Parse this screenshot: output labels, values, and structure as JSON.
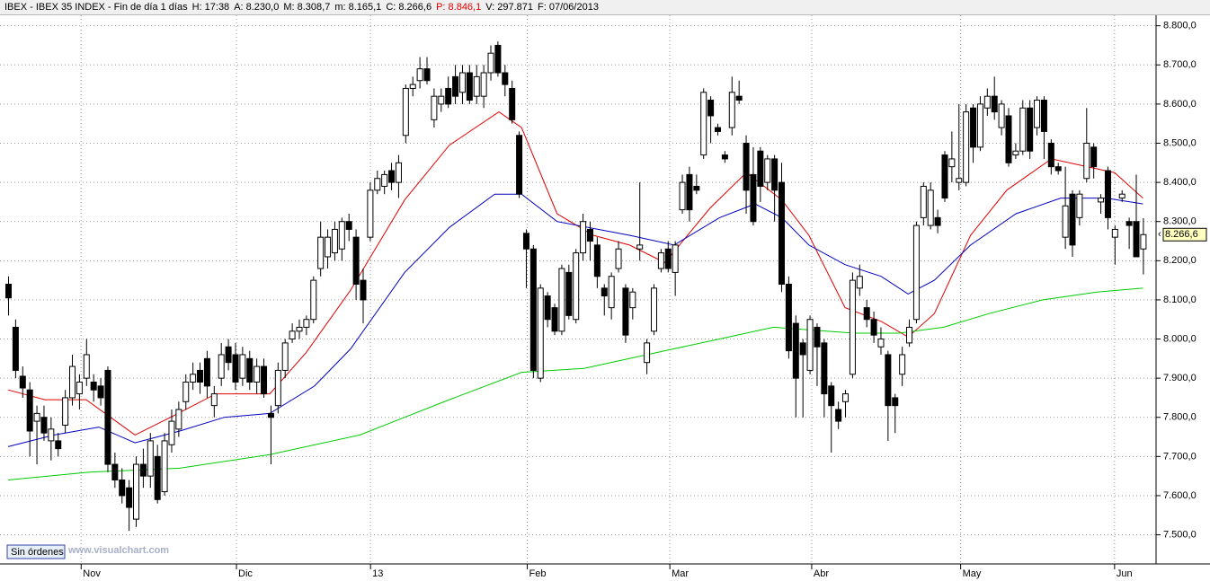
{
  "chart_data": {
    "type": "candlestick",
    "header": [
      {
        "text": "IBEX - IBEX 35 INDEX - Fin de día 1 días"
      },
      {
        "text": "H: 17:38"
      },
      {
        "text": "A: 8.230,0"
      },
      {
        "text": "M: 8.308,7"
      },
      {
        "text": "m: 8.165,1"
      },
      {
        "text": "C: 8.266,6"
      },
      {
        "text": "P: 8.846,1",
        "color": "#e00000"
      },
      {
        "text": "V: 297.871"
      },
      {
        "text": "F: 07/06/2013"
      }
    ],
    "watermark": "www.visualchart.com",
    "button": "Sin órdenes",
    "up_color": "#ffffff",
    "down_color": "#000000",
    "grid": true,
    "ohlc": [
      [
        8140,
        8160,
        8060,
        8105
      ],
      [
        8030,
        8050,
        7900,
        7920
      ],
      [
        7905,
        7930,
        7850,
        7875
      ],
      [
        7870,
        7890,
        7700,
        7765
      ],
      [
        7790,
        7830,
        7680,
        7810
      ],
      [
        7800,
        7830,
        7740,
        7760
      ],
      [
        7740,
        7800,
        7690,
        7770
      ],
      [
        7740,
        7760,
        7700,
        7720
      ],
      [
        7780,
        7870,
        7760,
        7850
      ],
      [
        7850,
        7960,
        7830,
        7930
      ],
      [
        7860,
        7910,
        7820,
        7890
      ],
      [
        7900,
        8000,
        7880,
        7960
      ],
      [
        7890,
        7910,
        7840,
        7870
      ],
      [
        7880,
        7900,
        7830,
        7850
      ],
      [
        7920,
        7930,
        7660,
        7680
      ],
      [
        7680,
        7710,
        7620,
        7640
      ],
      [
        7640,
        7670,
        7580,
        7600
      ],
      [
        7620,
        7640,
        7510,
        7570
      ],
      [
        7540,
        7700,
        7520,
        7680
      ],
      [
        7680,
        7720,
        7620,
        7650
      ],
      [
        7650,
        7760,
        7620,
        7740
      ],
      [
        7700,
        7730,
        7580,
        7590
      ],
      [
        7610,
        7760,
        7600,
        7740
      ],
      [
        7730,
        7820,
        7710,
        7790
      ],
      [
        7770,
        7840,
        7750,
        7820
      ],
      [
        7840,
        7910,
        7820,
        7890
      ],
      [
        7890,
        7940,
        7870,
        7910
      ],
      [
        7920,
        7940,
        7860,
        7890
      ],
      [
        7950,
        7970,
        7850,
        7880
      ],
      [
        7830,
        7880,
        7800,
        7860
      ],
      [
        7900,
        7990,
        7880,
        7960
      ],
      [
        7980,
        8000,
        7920,
        7940
      ],
      [
        7960,
        7990,
        7870,
        7890
      ],
      [
        7900,
        7980,
        7880,
        7960
      ],
      [
        7950,
        7970,
        7870,
        7890
      ],
      [
        7890,
        7950,
        7860,
        7930
      ],
      [
        7930,
        7950,
        7850,
        7860
      ],
      [
        7810,
        7830,
        7680,
        7800
      ],
      [
        7830,
        7940,
        7810,
        7920
      ],
      [
        7920,
        8000,
        7900,
        7990
      ],
      [
        8000,
        8040,
        7990,
        8020
      ],
      [
        8020,
        8050,
        8000,
        8030
      ],
      [
        8030,
        8060,
        8010,
        8050
      ],
      [
        8050,
        8160,
        8040,
        8150
      ],
      [
        8180,
        8300,
        8160,
        8260
      ],
      [
        8210,
        8280,
        8180,
        8260
      ],
      [
        8220,
        8300,
        8200,
        8280
      ],
      [
        8230,
        8310,
        8200,
        8300
      ],
      [
        8300,
        8320,
        8250,
        8280
      ],
      [
        8260,
        8280,
        8100,
        8140
      ],
      [
        8150,
        8180,
        8040,
        8100
      ],
      [
        8260,
        8400,
        8250,
        8380
      ],
      [
        8380,
        8430,
        8370,
        8410
      ],
      [
        8390,
        8430,
        8370,
        8420
      ],
      [
        8430,
        8450,
        8380,
        8400
      ],
      [
        8400,
        8470,
        8360,
        8450
      ],
      [
        8520,
        8650,
        8500,
        8640
      ],
      [
        8640,
        8670,
        8620,
        8650
      ],
      [
        8660,
        8720,
        8640,
        8690
      ],
      [
        8690,
        8720,
        8650,
        8660
      ],
      [
        8560,
        8640,
        8540,
        8620
      ],
      [
        8600,
        8640,
        8580,
        8620
      ],
      [
        8640,
        8670,
        8590,
        8600
      ],
      [
        8670,
        8700,
        8600,
        8620
      ],
      [
        8630,
        8700,
        8600,
        8680
      ],
      [
        8680,
        8700,
        8600,
        8610
      ],
      [
        8620,
        8700,
        8600,
        8670
      ],
      [
        8620,
        8700,
        8590,
        8680
      ],
      [
        8680,
        8750,
        8660,
        8730
      ],
      [
        8750,
        8760,
        8670,
        8680
      ],
      [
        8680,
        8700,
        8620,
        8650
      ],
      [
        8640,
        8660,
        8550,
        8560
      ],
      [
        8520,
        8530,
        8360,
        8370
      ],
      [
        8270,
        8280,
        8130,
        8230
      ],
      [
        8230,
        8240,
        7900,
        7920
      ],
      [
        7900,
        8140,
        7890,
        8130
      ],
      [
        8110,
        8120,
        8030,
        8050
      ],
      [
        8080,
        8090,
        8010,
        8020
      ],
      [
        8020,
        8190,
        8010,
        8180
      ],
      [
        8170,
        8190,
        8050,
        8060
      ],
      [
        8050,
        8230,
        8040,
        8220
      ],
      [
        8220,
        8320,
        8200,
        8300
      ],
      [
        8280,
        8300,
        8200,
        8250
      ],
      [
        8240,
        8260,
        8130,
        8160
      ],
      [
        8130,
        8140,
        8060,
        8110
      ],
      [
        8080,
        8170,
        8050,
        8160
      ],
      [
        8180,
        8250,
        8170,
        8230
      ],
      [
        8130,
        8140,
        7990,
        8010
      ],
      [
        8080,
        8130,
        8050,
        8120
      ],
      [
        8230,
        8400,
        8200,
        8240
      ],
      [
        7940,
        8000,
        7910,
        7990
      ],
      [
        8020,
        8140,
        8010,
        8130
      ],
      [
        8180,
        8230,
        8170,
        8220
      ],
      [
        8230,
        8250,
        8170,
        8180
      ],
      [
        8170,
        8250,
        8110,
        8240
      ],
      [
        8330,
        8420,
        8320,
        8400
      ],
      [
        8420,
        8440,
        8300,
        8330
      ],
      [
        8390,
        8420,
        8370,
        8380
      ],
      [
        8470,
        8640,
        8460,
        8630
      ],
      [
        8610,
        8620,
        8500,
        8570
      ],
      [
        8540,
        8550,
        8520,
        8530
      ],
      [
        8470,
        8480,
        8450,
        8460
      ],
      [
        8540,
        8670,
        8520,
        8630
      ],
      [
        8620,
        8660,
        8600,
        8610
      ],
      [
        8500,
        8520,
        8320,
        8380
      ],
      [
        8420,
        8490,
        8290,
        8300
      ],
      [
        8480,
        8490,
        8350,
        8390
      ],
      [
        8400,
        8470,
        8380,
        8460
      ],
      [
        8460,
        8470,
        8300,
        8380
      ],
      [
        8400,
        8450,
        8120,
        8140
      ],
      [
        8140,
        8160,
        7950,
        7970
      ],
      [
        8040,
        8060,
        7800,
        7900
      ],
      [
        7990,
        8000,
        7800,
        7960
      ],
      [
        7920,
        8060,
        7910,
        8050
      ],
      [
        8030,
        8040,
        7880,
        7980
      ],
      [
        7990,
        8000,
        7800,
        7860
      ],
      [
        7880,
        7890,
        7710,
        7830
      ],
      [
        7820,
        7840,
        7770,
        7790
      ],
      [
        7840,
        7870,
        7800,
        7860
      ],
      [
        7910,
        8170,
        7900,
        8150
      ],
      [
        8130,
        8190,
        8110,
        8160
      ],
      [
        8080,
        8100,
        8030,
        8050
      ],
      [
        8050,
        8070,
        7990,
        8010
      ],
      [
        7980,
        8030,
        7960,
        8000
      ],
      [
        7960,
        7970,
        7740,
        7830
      ],
      [
        7850,
        7860,
        7760,
        7830
      ],
      [
        7910,
        7980,
        7880,
        7960
      ],
      [
        7990,
        8050,
        7980,
        8030
      ],
      [
        8050,
        8300,
        8040,
        8290
      ],
      [
        8310,
        8400,
        8290,
        8390
      ],
      [
        8290,
        8400,
        8280,
        8380
      ],
      [
        8310,
        8330,
        8270,
        8290
      ],
      [
        8470,
        8480,
        8350,
        8360
      ],
      [
        8440,
        8530,
        8400,
        8460
      ],
      [
        8400,
        8600,
        8380,
        8410
      ],
      [
        8400,
        8600,
        8390,
        8580
      ],
      [
        8590,
        8600,
        8450,
        8490
      ],
      [
        8490,
        8620,
        8480,
        8600
      ],
      [
        8590,
        8640,
        8570,
        8620
      ],
      [
        8620,
        8670,
        8560,
        8580
      ],
      [
        8540,
        8610,
        8520,
        8600
      ],
      [
        8570,
        8590,
        8440,
        8450
      ],
      [
        8470,
        8500,
        8460,
        8480
      ],
      [
        8480,
        8610,
        8470,
        8590
      ],
      [
        8590,
        8610,
        8460,
        8480
      ],
      [
        8540,
        8620,
        8520,
        8610
      ],
      [
        8610,
        8620,
        8460,
        8530
      ],
      [
        8500,
        8510,
        8420,
        8440
      ],
      [
        8440,
        8450,
        8420,
        8430
      ],
      [
        8260,
        8440,
        8230,
        8340
      ],
      [
        8370,
        8380,
        8210,
        8240
      ],
      [
        8310,
        8380,
        8290,
        8370
      ],
      [
        8410,
        8590,
        8400,
        8500
      ],
      [
        8490,
        8500,
        8410,
        8440
      ],
      [
        8350,
        8370,
        8320,
        8360
      ],
      [
        8430,
        8440,
        8280,
        8310
      ],
      [
        8260,
        8290,
        8190,
        8280
      ],
      [
        8360,
        8380,
        8350,
        8370
      ],
      [
        8300,
        8310,
        8230,
        8290
      ],
      [
        8300,
        8420,
        8210,
        8210
      ],
      [
        8230,
        8308.7,
        8165.1,
        8266.6
      ]
    ],
    "series": [
      {
        "color": "#e00000",
        "x": [
          0,
          5.2,
          11,
          17.9,
          22.9,
          29.3,
          36.9,
          42,
          48.3,
          55.9,
          62.2,
          69.2,
          72.4,
          77.4,
          82.5,
          87.6,
          92.6,
          99,
          104.1,
          109.1,
          112.9,
          118,
          123.1,
          126.9,
          130.6,
          135.7,
          140.8,
          147.1,
          152.2,
          156,
          160
        ],
        "values": [
          7870,
          7845,
          7845,
          7755,
          7800,
          7860,
          7860,
          7965,
          8125,
          8355,
          8495,
          8580,
          8540,
          8320,
          8265,
          8240,
          8195,
          8335,
          8425,
          8355,
          8265,
          8080,
          8045,
          8005,
          8065,
          8265,
          8380,
          8460,
          8440,
          8425,
          8360
        ]
      },
      {
        "color": "#0000c0",
        "x": [
          0,
          6.5,
          12.8,
          17.9,
          24.2,
          30.5,
          36.9,
          43.2,
          48.3,
          55.9,
          62.2,
          68.6,
          72.4,
          77.4,
          87.6,
          93.9,
          100.3,
          105.3,
          109.1,
          112.9,
          118,
          123.1,
          126.9,
          130.6,
          135.7,
          142.1,
          148.4,
          154.8,
          160
        ],
        "values": [
          7725,
          7755,
          7775,
          7735,
          7765,
          7800,
          7810,
          7880,
          7975,
          8170,
          8285,
          8370,
          8370,
          8300,
          8265,
          8240,
          8310,
          8345,
          8310,
          8240,
          8190,
          8160,
          8115,
          8150,
          8240,
          8320,
          8360,
          8360,
          8345
        ]
      },
      {
        "color": "#00cc00",
        "x": [
          0,
          11.5,
          24.2,
          36.9,
          49.6,
          55.9,
          62.2,
          72.4,
          81.2,
          93.9,
          100.3,
          107.9,
          119.3,
          125.6,
          131.9,
          138.3,
          145.9,
          153.5,
          160
        ],
        "values": [
          7640,
          7660,
          7670,
          7705,
          7755,
          7800,
          7845,
          7915,
          7925,
          7975,
          8000,
          8030,
          8015,
          8015,
          8030,
          8065,
          8100,
          8120,
          8130
        ]
      }
    ],
    "xlim": [
      -1,
      162.5
    ],
    "xticks": [
      {
        "value": 10.3,
        "label": "Nov"
      },
      {
        "value": 32.2,
        "label": "Dic"
      },
      {
        "value": 51.1,
        "label": "13"
      },
      {
        "value": 73.2,
        "label": "Feb"
      },
      {
        "value": 93.3,
        "label": "Mar"
      },
      {
        "value": 113.3,
        "label": "Abr"
      },
      {
        "value": 134.3,
        "label": "May"
      },
      {
        "value": 156,
        "label": "Jun"
      }
    ],
    "ylim": [
      7425.6,
      8826.8
    ],
    "yticks": [
      {
        "value": 7500,
        "label": "7.500,0"
      },
      {
        "value": 7600,
        "label": "7.600,0"
      },
      {
        "value": 7700,
        "label": "7.700,0"
      },
      {
        "value": 7800,
        "label": "7.800,0"
      },
      {
        "value": 7900,
        "label": "7.900,0"
      },
      {
        "value": 8000,
        "label": "8.000,0"
      },
      {
        "value": 8100,
        "label": "8.100,0"
      },
      {
        "value": 8200,
        "label": "8.200,0"
      },
      {
        "value": 8300,
        "label": "8.300,0"
      },
      {
        "value": 8400,
        "label": "8.400,0"
      },
      {
        "value": 8500,
        "label": "8.500,0"
      },
      {
        "value": 8600,
        "label": "8.600,0"
      },
      {
        "value": 8700,
        "label": "8.700,0"
      },
      {
        "value": 8800,
        "label": "8.800,0"
      }
    ],
    "last_price": {
      "value": 8266.6,
      "label": "8.266,6"
    }
  }
}
